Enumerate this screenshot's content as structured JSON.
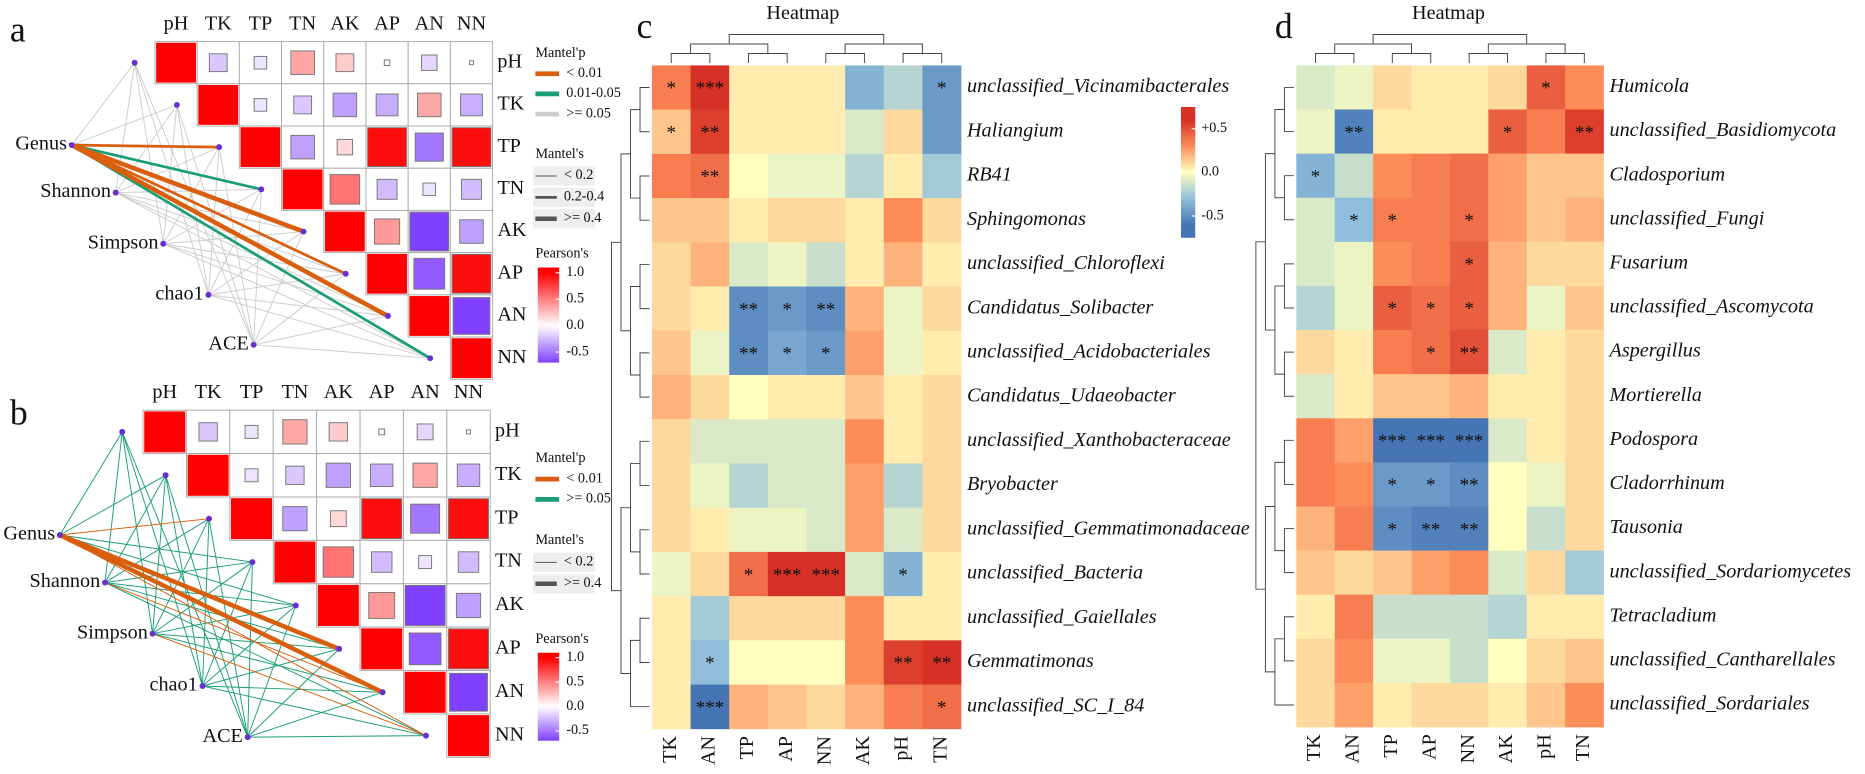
{
  "chart_data": [
    {
      "type": "mantel",
      "panel": "a",
      "columns": [
        "pH",
        "TK",
        "TP",
        "TN",
        "AK",
        "AP",
        "AN",
        "NN"
      ],
      "matrix": [
        [
          1,
          -0.2,
          -0.1,
          0.35,
          0.2,
          0.02,
          -0.15,
          0.01
        ],
        [
          null,
          1,
          -0.1,
          -0.2,
          -0.35,
          -0.3,
          0.35,
          -0.3
        ],
        [
          null,
          null,
          1,
          -0.35,
          0.15,
          0.95,
          -0.5,
          0.95
        ],
        [
          null,
          null,
          null,
          1,
          0.55,
          -0.25,
          -0.1,
          -0.25
        ],
        [
          null,
          null,
          null,
          null,
          1,
          0.4,
          -0.95,
          -0.35
        ],
        [
          null,
          null,
          null,
          null,
          null,
          1,
          -0.6,
          0.95
        ],
        [
          null,
          null,
          null,
          null,
          null,
          null,
          1,
          -0.85
        ],
        [
          null,
          null,
          null,
          null,
          null,
          null,
          null,
          1
        ]
      ],
      "sources": [
        "Genus",
        "Shannon",
        "Simpson",
        "chao1",
        "ACE"
      ],
      "mantel_p": [
        [
          0.3,
          0.4,
          0.005,
          0.03,
          0.001,
          0.008,
          0.001,
          0.02
        ],
        [
          0.3,
          0.3,
          0.3,
          0.3,
          0.3,
          0.3,
          0.3,
          0.3
        ],
        [
          0.3,
          0.3,
          0.3,
          0.3,
          0.3,
          0.3,
          0.3,
          0.3
        ],
        [
          0.3,
          0.3,
          0.3,
          0.3,
          0.3,
          0.3,
          0.3,
          0.3
        ],
        [
          0.3,
          0.3,
          0.3,
          0.3,
          0.3,
          0.3,
          0.3,
          0.3
        ]
      ],
      "mantel_r": [
        [
          0.1,
          0.1,
          0.3,
          0.25,
          0.45,
          0.3,
          0.45,
          0.3
        ],
        [
          0.1,
          0.1,
          0.1,
          0.1,
          0.1,
          0.1,
          0.1,
          0.1
        ],
        [
          0.1,
          0.1,
          0.1,
          0.1,
          0.1,
          0.1,
          0.1,
          0.1
        ],
        [
          0.1,
          0.1,
          0.1,
          0.1,
          0.1,
          0.1,
          0.1,
          0.1
        ],
        [
          0.1,
          0.1,
          0.1,
          0.1,
          0.1,
          0.1,
          0.1,
          0.1
        ]
      ],
      "legend_p": {
        "title": "Mantel'p",
        "items": [
          {
            "value": 0.01,
            "label": "< 0.01",
            "color": "#d95f0e"
          },
          {
            "value": 0.05,
            "label": "0.01-0.05",
            "color": "#1b9e77"
          },
          {
            "value": 0.05,
            "label": ">= 0.05",
            "color": "#cccccc"
          }
        ]
      },
      "legend_r": {
        "title": "Mantel's",
        "items": [
          {
            "value": 0.2,
            "label": "< 0.2"
          },
          {
            "value": 0.4,
            "label": "0.2-0.4"
          },
          {
            "value": 0.4,
            "label": ">= 0.4"
          }
        ]
      },
      "colorbar": {
        "title": "Pearson's",
        "lim": [
          -0.7,
          1.1
        ],
        "ticks": [
          {
            "value": 1,
            "label": "1.0"
          },
          0.5,
          {
            "value": 0,
            "label": "0.0"
          },
          -0.5
        ]
      }
    },
    {
      "type": "mantel",
      "panel": "b",
      "columns": [
        "pH",
        "TK",
        "TP",
        "TN",
        "AK",
        "AP",
        "AN",
        "NN"
      ],
      "matrix": [
        [
          1,
          -0.2,
          -0.1,
          0.35,
          0.2,
          0.02,
          -0.15,
          0.01
        ],
        [
          null,
          1,
          -0.1,
          -0.2,
          -0.35,
          -0.3,
          0.35,
          -0.3
        ],
        [
          null,
          null,
          1,
          -0.35,
          0.15,
          0.95,
          -0.5,
          0.95
        ],
        [
          null,
          null,
          null,
          1,
          0.55,
          -0.25,
          -0.1,
          -0.25
        ],
        [
          null,
          null,
          null,
          null,
          1,
          0.4,
          -0.95,
          -0.35
        ],
        [
          null,
          null,
          null,
          null,
          null,
          1,
          -0.6,
          0.95
        ],
        [
          null,
          null,
          null,
          null,
          null,
          null,
          1,
          -0.85
        ],
        [
          null,
          null,
          null,
          null,
          null,
          null,
          null,
          1
        ]
      ],
      "sources": [
        "Genus",
        "Shannon",
        "Simpson",
        "chao1",
        "ACE"
      ],
      "mantel_p": [
        [
          0.3,
          0.3,
          0.005,
          0.3,
          0.3,
          0.005,
          0.001,
          0.005
        ],
        [
          0.3,
          0.3,
          0.3,
          0.3,
          0.3,
          0.3,
          0.005,
          0.3
        ],
        [
          0.3,
          0.3,
          0.3,
          0.3,
          0.3,
          0.3,
          0.3,
          0.005
        ],
        [
          0.3,
          0.3,
          0.3,
          0.3,
          0.3,
          0.3,
          0.3,
          0.3
        ],
        [
          0.3,
          0.3,
          0.3,
          0.3,
          0.3,
          0.3,
          0.3,
          0.3
        ]
      ],
      "mantel_r": [
        [
          0.1,
          0.1,
          0.1,
          0.1,
          0.1,
          0.45,
          0.45,
          0.1
        ],
        [
          0.1,
          0.1,
          0.1,
          0.1,
          0.1,
          0.1,
          0.1,
          0.1
        ],
        [
          0.1,
          0.1,
          0.1,
          0.1,
          0.1,
          0.1,
          0.1,
          0.1
        ],
        [
          0.1,
          0.1,
          0.1,
          0.1,
          0.1,
          0.1,
          0.1,
          0.1
        ],
        [
          0.1,
          0.1,
          0.1,
          0.1,
          0.1,
          0.1,
          0.1,
          0.1
        ]
      ],
      "legend_p": {
        "title": "Mantel'p",
        "items": [
          {
            "value": 0.01,
            "label": "< 0.01",
            "color": "#d95f0e"
          },
          {
            "value": 0.05,
            "label": ">= 0.05",
            "color": "#1b9e77"
          }
        ]
      },
      "legend_r": {
        "title": "Mantel's",
        "items": [
          {
            "value": 0.2,
            "label": "< 0.2"
          },
          {
            "value": 0.4,
            "label": ">= 0.4"
          }
        ]
      },
      "colorbar": {
        "title": "Pearson's",
        "lim": [
          -0.7,
          1.1
        ],
        "ticks": [
          {
            "value": 1,
            "label": "1.0"
          },
          0.5,
          {
            "value": 0,
            "label": "0.0"
          },
          -0.5
        ]
      }
    },
    {
      "type": "heatmap",
      "panel": "c",
      "title": "Heatmap",
      "columns": [
        "TK",
        "AN",
        "TP",
        "AP",
        "NN",
        "AK",
        "pH",
        "TN"
      ],
      "rows": [
        "unclassified_Vicinamibacterales",
        "Haliangium",
        "RB41",
        "Sphingomonas",
        "unclassified_Chloroflexi",
        "Candidatus_Solibacter",
        "unclassified_Acidobacteriales",
        "Candidatus_Udaeobacter",
        "unclassified_Xanthobacteraceae",
        "Bryobacter",
        "unclassified_Gemmatimonadaceae",
        "unclassified_Bacteria",
        "unclassified_Gaiellales",
        "Gemmatimonas",
        "unclassified_SC_I_84"
      ],
      "values": [
        [
          0.35,
          0.6,
          0.05,
          0.05,
          0.05,
          -0.35,
          -0.2,
          -0.45
        ],
        [
          0.15,
          0.55,
          0.05,
          0.05,
          0.05,
          -0.1,
          0.1,
          -0.45
        ],
        [
          0.35,
          0.4,
          0,
          -0.05,
          -0.05,
          -0.2,
          0.05,
          -0.25
        ],
        [
          0.15,
          0.15,
          0.05,
          0.1,
          0.1,
          0.05,
          0.3,
          0.1
        ],
        [
          0.1,
          0.2,
          -0.1,
          -0.05,
          -0.15,
          0.05,
          0.2,
          0.05
        ],
        [
          0.1,
          0.05,
          -0.5,
          -0.45,
          -0.5,
          0.2,
          -0.05,
          0.1
        ],
        [
          0.15,
          -0.05,
          -0.5,
          -0.4,
          -0.45,
          0.25,
          -0.05,
          0.05
        ],
        [
          0.2,
          0.1,
          0,
          0.05,
          0.05,
          0.15,
          0.05,
          0.1
        ],
        [
          0.1,
          -0.1,
          -0.1,
          -0.1,
          -0.1,
          0.3,
          0.05,
          0.1
        ],
        [
          0.1,
          -0.05,
          -0.2,
          -0.1,
          -0.1,
          0.25,
          -0.2,
          0.1
        ],
        [
          0.1,
          0.05,
          -0.05,
          -0.05,
          -0.1,
          0.25,
          -0.1,
          0.1
        ],
        [
          -0.05,
          0.1,
          0.4,
          0.6,
          0.6,
          -0.1,
          -0.35,
          0.05
        ],
        [
          0.05,
          -0.25,
          0.1,
          0.1,
          0.1,
          0.3,
          0.05,
          0.05
        ],
        [
          0.05,
          -0.3,
          0,
          0,
          0,
          0.3,
          0.55,
          0.6
        ],
        [
          0.05,
          -0.65,
          0.2,
          0.15,
          0.1,
          0.2,
          0.35,
          0.4
        ]
      ],
      "labels": [
        [
          "*",
          "***",
          null,
          null,
          null,
          null,
          null,
          "*"
        ],
        [
          "*",
          "**",
          null,
          null,
          null,
          null,
          null,
          null
        ],
        [
          null,
          "**",
          null,
          null,
          null,
          null,
          null,
          null
        ],
        [
          null,
          null,
          null,
          null,
          null,
          null,
          null,
          null
        ],
        [
          null,
          null,
          null,
          null,
          null,
          null,
          null,
          null
        ],
        [
          null,
          null,
          "**",
          "*",
          "**",
          null,
          null,
          null
        ],
        [
          null,
          null,
          "**",
          "*",
          "*",
          null,
          null,
          null
        ],
        [
          null,
          null,
          null,
          null,
          null,
          null,
          null,
          null
        ],
        [
          null,
          null,
          null,
          null,
          null,
          null,
          null,
          null
        ],
        [
          null,
          null,
          null,
          null,
          null,
          null,
          null,
          null
        ],
        [
          null,
          null,
          null,
          null,
          null,
          null,
          null,
          null
        ],
        [
          null,
          null,
          "*",
          "***",
          "***",
          null,
          "*",
          null
        ],
        [
          null,
          null,
          null,
          null,
          null,
          null,
          null,
          null
        ],
        [
          null,
          "*",
          null,
          null,
          null,
          null,
          "**",
          "**"
        ],
        [
          null,
          "***",
          null,
          null,
          null,
          null,
          null,
          "*"
        ]
      ],
      "colorbar": {
        "lim": [
          -0.75,
          0.75
        ],
        "ticks": [
          {
            "value": 0.5,
            "label": "+0.5"
          },
          {
            "value": 0,
            "label": "0.0"
          },
          -0.5
        ]
      }
    },
    {
      "type": "heatmap",
      "panel": "d",
      "title": "Heatmap",
      "columns": [
        "TK",
        "AN",
        "TP",
        "AP",
        "NN",
        "AK",
        "pH",
        "TN"
      ],
      "rows": [
        "Humicola",
        "unclassified_Basidiomycota",
        "Cladosporium",
        "unclassified_Fungi",
        "Fusarium",
        "unclassified_Ascomycota",
        "Aspergillus",
        "Mortierella",
        "Podospora",
        "Cladorrhinum",
        "Tausonia",
        "unclassified_Sordariomycetes",
        "Tetracladium",
        "unclassified_Cantharellales",
        "unclassified_Sordariales"
      ],
      "values": [
        [
          -0.1,
          -0.05,
          0.1,
          0.05,
          0.05,
          0.1,
          0.45,
          0.3
        ],
        [
          -0.05,
          -0.55,
          0.05,
          0.05,
          0.05,
          0.45,
          0.35,
          0.55
        ],
        [
          -0.35,
          -0.15,
          0.3,
          0.35,
          0.4,
          0.25,
          0.15,
          0.15
        ],
        [
          -0.1,
          -0.3,
          0.35,
          0.35,
          0.4,
          0.25,
          0.15,
          0.2
        ],
        [
          -0.1,
          -0.05,
          0.3,
          0.35,
          0.45,
          0.2,
          0.1,
          0.1
        ],
        [
          -0.2,
          -0.05,
          0.45,
          0.4,
          0.45,
          0.2,
          -0.05,
          0.15
        ],
        [
          0.1,
          0.05,
          0.35,
          0.4,
          0.5,
          -0.1,
          0.05,
          0.1
        ],
        [
          -0.1,
          0.05,
          0.15,
          0.15,
          0.2,
          0.05,
          0.05,
          0.1
        ],
        [
          0.35,
          0.25,
          -0.6,
          -0.6,
          -0.6,
          -0.1,
          0.05,
          0.1
        ],
        [
          0.35,
          0.3,
          -0.45,
          -0.45,
          -0.5,
          0,
          -0.05,
          0.1
        ],
        [
          0.2,
          0.35,
          -0.5,
          -0.55,
          -0.55,
          0,
          -0.15,
          0.1
        ],
        [
          0.15,
          0.1,
          0.15,
          0.25,
          0.3,
          -0.1,
          0.1,
          -0.25
        ],
        [
          0.05,
          0.35,
          -0.15,
          -0.15,
          -0.15,
          -0.2,
          0.05,
          0.05
        ],
        [
          0.1,
          0.3,
          -0.05,
          -0.05,
          -0.15,
          0,
          0.1,
          0.15
        ],
        [
          0.1,
          0.25,
          0.05,
          0.1,
          0.1,
          0.05,
          0.15,
          0.3
        ]
      ],
      "labels": [
        [
          null,
          null,
          null,
          null,
          null,
          null,
          "*",
          null
        ],
        [
          null,
          "**",
          null,
          null,
          null,
          "*",
          null,
          "**"
        ],
        [
          "*",
          null,
          null,
          null,
          null,
          null,
          null,
          null
        ],
        [
          null,
          "*",
          "*",
          null,
          "*",
          null,
          null,
          null
        ],
        [
          null,
          null,
          null,
          null,
          "*",
          null,
          null,
          null
        ],
        [
          null,
          null,
          "*",
          "*",
          "*",
          null,
          null,
          null
        ],
        [
          null,
          null,
          null,
          "*",
          "**",
          null,
          null,
          null
        ],
        [
          null,
          null,
          null,
          null,
          null,
          null,
          null,
          null
        ],
        [
          null,
          null,
          "***",
          "***",
          "***",
          null,
          null,
          null
        ],
        [
          null,
          null,
          "*",
          "*",
          "**",
          null,
          null,
          null
        ],
        [
          null,
          null,
          "*",
          "**",
          "**",
          null,
          null,
          null
        ],
        [
          null,
          null,
          null,
          null,
          null,
          null,
          null,
          null
        ],
        [
          null,
          null,
          null,
          null,
          null,
          null,
          null,
          null
        ],
        [
          null,
          null,
          null,
          null,
          null,
          null,
          null,
          null
        ],
        [
          null,
          null,
          null,
          null,
          null,
          null,
          null,
          null
        ]
      ]
    }
  ]
}
